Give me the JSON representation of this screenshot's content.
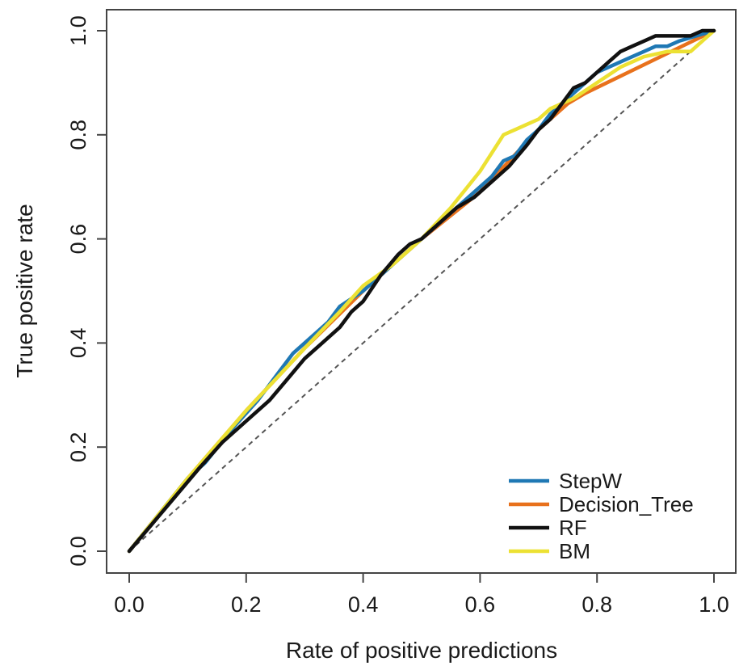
{
  "chart_data": {
    "type": "line",
    "title": "",
    "xlabel": "Rate of positive predictions",
    "ylabel": "True positive rate",
    "xlim": [
      0.0,
      1.0
    ],
    "ylim": [
      0.0,
      1.0
    ],
    "x_ticks": [
      "0.0",
      "0.2",
      "0.4",
      "0.6",
      "0.8",
      "1.0"
    ],
    "y_ticks": [
      "0.0",
      "0.2",
      "0.4",
      "0.6",
      "0.8",
      "1.0"
    ],
    "grid": false,
    "legend_position": "bottom-right",
    "reference_line": {
      "style": "dashed",
      "color": "#555555",
      "x": [
        0,
        1
      ],
      "y": [
        0,
        1
      ]
    },
    "series": [
      {
        "name": "StepW",
        "color": "#1f78b4",
        "x": [
          0.0,
          0.05,
          0.1,
          0.13,
          0.18,
          0.22,
          0.26,
          0.28,
          0.3,
          0.32,
          0.34,
          0.36,
          0.4,
          0.44,
          0.48,
          0.5,
          0.54,
          0.58,
          0.6,
          0.62,
          0.64,
          0.66,
          0.68,
          0.7,
          0.72,
          0.74,
          0.76,
          0.78,
          0.8,
          0.82,
          0.84,
          0.86,
          0.88,
          0.9,
          0.92,
          0.94,
          0.97,
          1.0
        ],
        "y": [
          0.0,
          0.07,
          0.14,
          0.17,
          0.24,
          0.29,
          0.35,
          0.38,
          0.4,
          0.42,
          0.44,
          0.47,
          0.5,
          0.54,
          0.58,
          0.6,
          0.64,
          0.68,
          0.7,
          0.72,
          0.75,
          0.76,
          0.79,
          0.81,
          0.84,
          0.86,
          0.88,
          0.9,
          0.92,
          0.93,
          0.94,
          0.95,
          0.96,
          0.97,
          0.97,
          0.98,
          0.99,
          1.0
        ]
      },
      {
        "name": "Decision_Tree",
        "color": "#e8711c",
        "x": [
          0.0,
          0.1,
          0.2,
          0.3,
          0.4,
          0.5,
          0.6,
          0.65,
          0.7,
          0.75,
          0.78,
          1.0
        ],
        "y": [
          0.0,
          0.14,
          0.27,
          0.39,
          0.5,
          0.6,
          0.69,
          0.75,
          0.81,
          0.86,
          0.88,
          1.0
        ]
      },
      {
        "name": "RF",
        "color": "#111111",
        "x": [
          0.0,
          0.06,
          0.12,
          0.16,
          0.2,
          0.24,
          0.27,
          0.3,
          0.33,
          0.36,
          0.38,
          0.4,
          0.43,
          0.46,
          0.48,
          0.5,
          0.53,
          0.56,
          0.59,
          0.62,
          0.65,
          0.68,
          0.7,
          0.72,
          0.74,
          0.76,
          0.78,
          0.8,
          0.82,
          0.84,
          0.86,
          0.88,
          0.9,
          0.93,
          0.96,
          0.98,
          1.0
        ],
        "y": [
          0.0,
          0.08,
          0.16,
          0.21,
          0.25,
          0.29,
          0.33,
          0.37,
          0.4,
          0.43,
          0.46,
          0.48,
          0.53,
          0.57,
          0.59,
          0.6,
          0.63,
          0.66,
          0.68,
          0.71,
          0.74,
          0.78,
          0.81,
          0.83,
          0.86,
          0.89,
          0.9,
          0.92,
          0.94,
          0.96,
          0.97,
          0.98,
          0.99,
          0.99,
          0.99,
          1.0,
          1.0
        ]
      },
      {
        "name": "BM",
        "color": "#ece133",
        "x": [
          0.0,
          0.1,
          0.2,
          0.3,
          0.36,
          0.4,
          0.45,
          0.5,
          0.55,
          0.6,
          0.64,
          0.66,
          0.68,
          0.7,
          0.72,
          0.76,
          0.8,
          0.84,
          0.88,
          0.92,
          0.96,
          1.0
        ],
        "y": [
          0.0,
          0.14,
          0.27,
          0.39,
          0.46,
          0.51,
          0.55,
          0.6,
          0.66,
          0.73,
          0.8,
          0.81,
          0.82,
          0.83,
          0.85,
          0.87,
          0.9,
          0.93,
          0.95,
          0.96,
          0.96,
          1.0
        ]
      }
    ]
  }
}
